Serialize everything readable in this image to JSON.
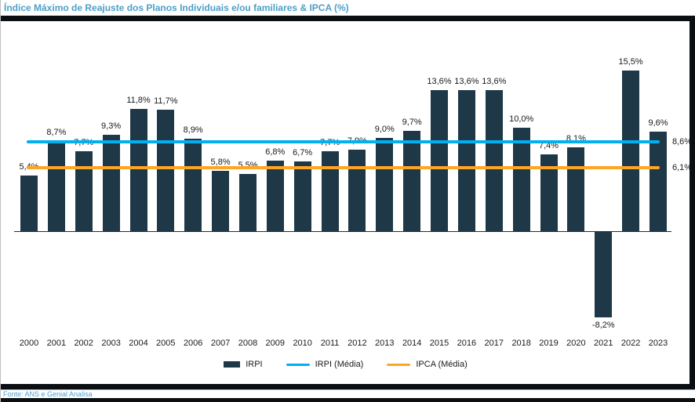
{
  "title": "Índice Máximo de Reajuste dos Planos Individuais e/ou familiares & IPCA (%)",
  "footer": {
    "source": "Fonte: ANS e Genial Analisa"
  },
  "colors": {
    "bar": "#1f3847",
    "irpi_media_line": "#00b0f0",
    "ipca_media_line": "#ffa524",
    "title_text": "#4d9fc9",
    "frame_strip": "#0b0e12",
    "axis": "#2b2b2b"
  },
  "legend": {
    "items": [
      {
        "label": "IRPI",
        "swatch": "bar",
        "color": "#1f3847"
      },
      {
        "label": "IRPI (Média)",
        "swatch": "line",
        "color": "#00b0f0"
      },
      {
        "label": "IPCA (Média)",
        "swatch": "line",
        "color": "#ffa524"
      }
    ]
  },
  "chart_data": {
    "type": "bar",
    "title": "Índice Máximo de Reajuste dos Planos Individuais e/ou familiares & IPCA (%)",
    "categories": [
      "2000",
      "2001",
      "2002",
      "2003",
      "2004",
      "2005",
      "2006",
      "2007",
      "2008",
      "2009",
      "2010",
      "2011",
      "2012",
      "2013",
      "2014",
      "2015",
      "2016",
      "2017",
      "2018",
      "2019",
      "2020",
      "2021",
      "2022",
      "2023"
    ],
    "series": [
      {
        "name": "IRPI",
        "values": [
          5.4,
          8.7,
          7.7,
          9.3,
          11.8,
          11.7,
          8.9,
          5.8,
          5.5,
          6.8,
          6.7,
          7.7,
          7.9,
          9.0,
          9.7,
          13.6,
          13.6,
          13.6,
          10.0,
          7.4,
          8.1,
          -8.2,
          15.5,
          9.6
        ]
      }
    ],
    "data_labels": [
      "5,4%",
      "8,7%",
      "7,7%",
      "9,3%",
      "11,8%",
      "11,7%",
      "8,9%",
      "5,8%",
      "5,5%",
      "6,8%",
      "6,7%",
      "7,7%",
      "7,9%",
      "9,0%",
      "9,7%",
      "13,6%",
      "13,6%",
      "13,6%",
      "10,0%",
      "7,4%",
      "8,1%",
      "-8,2%",
      "15,5%",
      "9,6%"
    ],
    "avg_lines": [
      {
        "name": "IRPI (Média)",
        "value": 8.6,
        "label": "8,6%",
        "color": "#00b0f0"
      },
      {
        "name": "IPCA (Média)",
        "value": 6.1,
        "label": "6,1%",
        "color": "#ffa524"
      }
    ],
    "xlabel": "",
    "ylabel": "",
    "ylim": [
      -10,
      17
    ],
    "grid": false,
    "legend_position": "bottom"
  }
}
